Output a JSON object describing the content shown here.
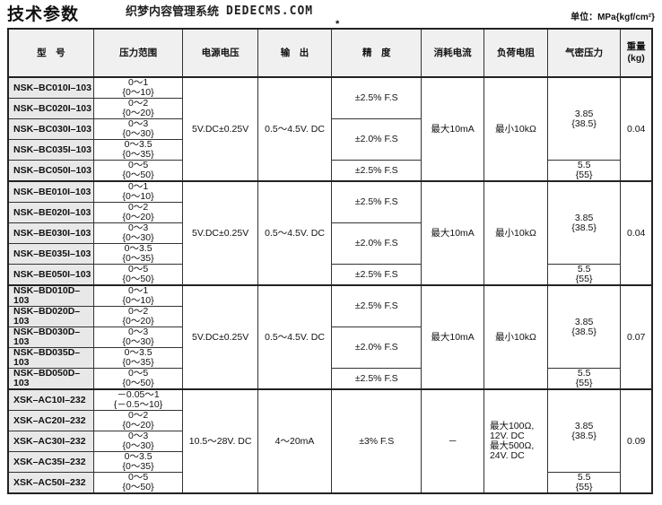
{
  "title": "技术参数",
  "unit": "单位：MPa{kgf/cm²}",
  "accuracy_mark": "*",
  "headers": [
    "型　号",
    "压力范围",
    "电源电压",
    "输　出",
    "精　度",
    "消耗电流",
    "负荷电阻",
    "气密压力",
    "重量\n(kg)"
  ],
  "groups": [
    {
      "models": [
        "NSK–BC010I–103",
        "NSK–BC020I–103",
        "NSK–BC030I–103",
        "NSK–BC035I–103",
        "NSK–BC050I–103"
      ],
      "ranges": [
        [
          "0～1",
          "{0～10}"
        ],
        [
          "0～2",
          "{0～20}"
        ],
        [
          "0～3",
          "{0～30}"
        ],
        [
          "0～3.5",
          "{0～35}"
        ],
        [
          "0～5",
          "{0～50}"
        ]
      ],
      "voltage": "5V.DC±0.25V",
      "output": "0.5～4.5V. DC",
      "accuracy": [
        "±2.5% F.S",
        "±2.0% F.S",
        "±2.5% F.S"
      ],
      "current": "最大10mA",
      "load": [
        "最小10kΩ"
      ],
      "airtight": [
        [
          "3.85",
          "{38.5}"
        ],
        [
          "5.5",
          "{55}"
        ]
      ],
      "weight": "0.04"
    },
    {
      "models": [
        "NSK–BE010I–103",
        "NSK–BE020I–103",
        "NSK–BE030I–103",
        "NSK–BE035I–103",
        "NSK–BE050I–103"
      ],
      "ranges": [
        [
          "0～1",
          "{0～10}"
        ],
        [
          "0～2",
          "{0～20}"
        ],
        [
          "0～3",
          "{0～30}"
        ],
        [
          "0～3.5",
          "{0～35}"
        ],
        [
          "0～5",
          "{0～50}"
        ]
      ],
      "voltage": "5V.DC±0.25V",
      "output": "0.5～4.5V. DC",
      "accuracy": [
        "±2.5% F.S",
        "±2.0% F.S",
        "±2.5% F.S"
      ],
      "current": "最大10mA",
      "load": [
        "最小10kΩ"
      ],
      "airtight": [
        [
          "3.85",
          "{38.5}"
        ],
        [
          "5.5",
          "{55}"
        ]
      ],
      "weight": "0.04"
    },
    {
      "models": [
        "NSK–BD010D–103",
        "NSK–BD020D–103",
        "NSK–BD030D–103",
        "NSK–BD035D–103",
        "NSK–BD050D–103"
      ],
      "ranges": [
        [
          "0～1",
          "{0～10}"
        ],
        [
          "0～2",
          "{0～20}"
        ],
        [
          "0～3",
          "{0～30}"
        ],
        [
          "0～3.5",
          "{0～35}"
        ],
        [
          "0～5",
          "{0～50}"
        ]
      ],
      "voltage": "5V.DC±0.25V",
      "output": "0.5～4.5V. DC",
      "accuracy": [
        "±2.5% F.S",
        "±2.0% F.S",
        "±2.5% F.S"
      ],
      "current": "最大10mA",
      "load": [
        "最小10kΩ"
      ],
      "airtight": [
        [
          "3.85",
          "{38.5}"
        ],
        [
          "5.5",
          "{55}"
        ]
      ],
      "weight": "0.07"
    },
    {
      "models": [
        "XSK–AC10I–232",
        "XSK–AC20I–232",
        "XSK–AC30I–232",
        "XSK–AC35I–232",
        "XSK–AC50I–232"
      ],
      "ranges": [
        [
          "－0.05～1",
          "{－0.5～10}"
        ],
        [
          "0～2",
          "{0～20}"
        ],
        [
          "0～3",
          "{0～30}"
        ],
        [
          "0～3.5",
          "{0～35}"
        ],
        [
          "0～5",
          "{0～50}"
        ]
      ],
      "voltage": "10.5～28V. DC",
      "output": "4～20mA",
      "accuracy": [
        "±3% F.S"
      ],
      "current": "－",
      "load": [
        "最大100Ω,",
        "12V. DC",
        "最大500Ω,",
        "24V. DC"
      ],
      "airtight": [
        [
          "3.85",
          "{38.5}"
        ],
        [
          "5.5",
          "{55}"
        ]
      ],
      "weight": "0.09"
    }
  ],
  "watermark": [
    "织梦内容管理系统",
    "DEDECMS.COM"
  ]
}
